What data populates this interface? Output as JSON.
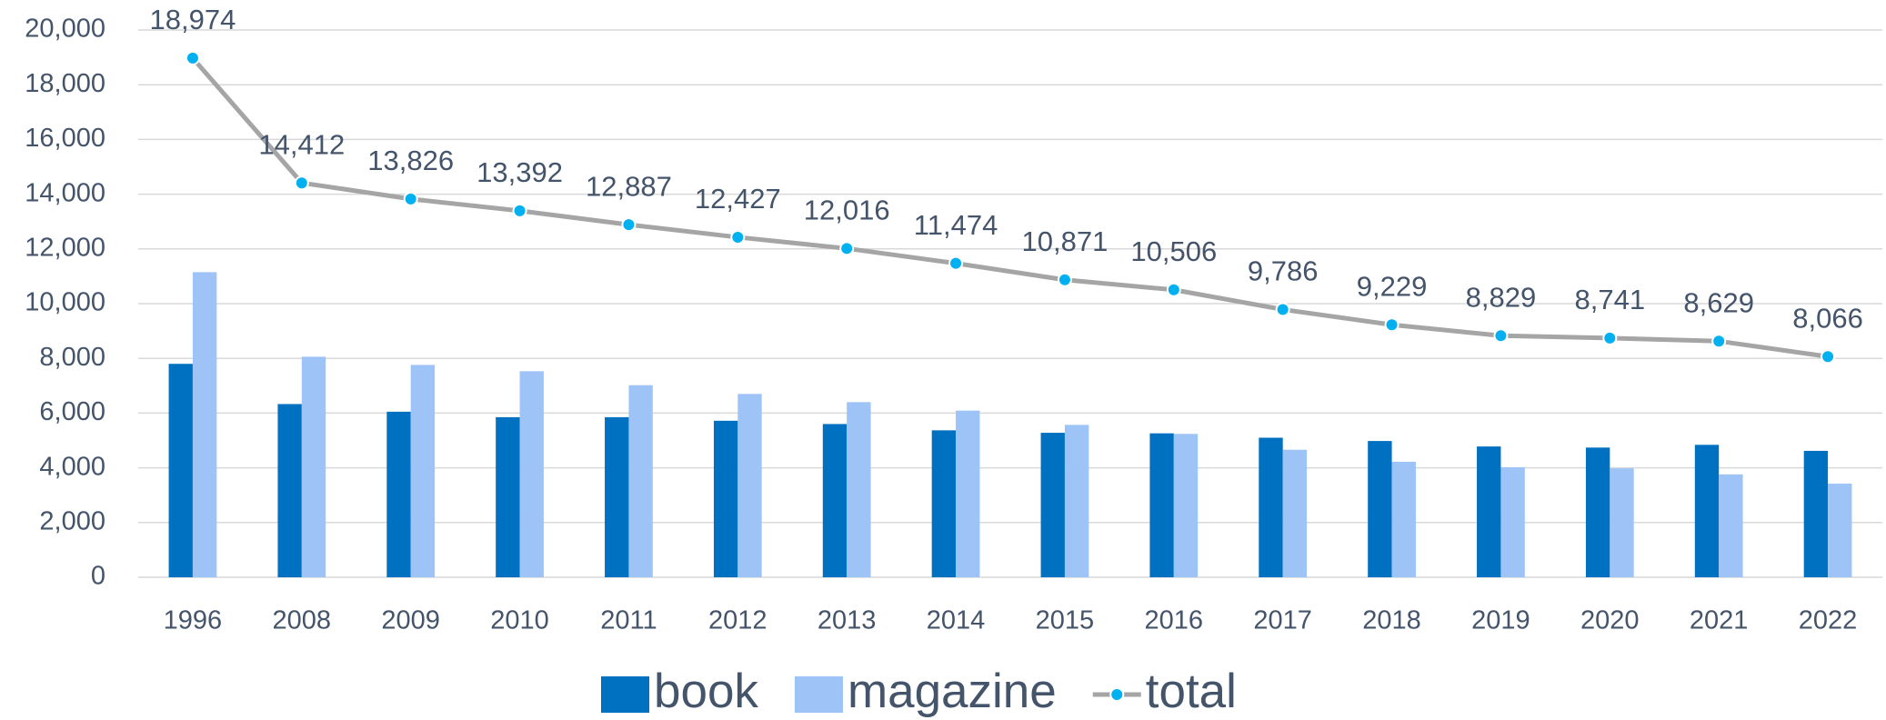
{
  "chart_data": {
    "type": "bar-line",
    "categories": [
      "1996",
      "2008",
      "2009",
      "2010",
      "2011",
      "2012",
      "2013",
      "2014",
      "2015",
      "2016",
      "2017",
      "2018",
      "2019",
      "2020",
      "2021",
      "2022"
    ],
    "series": [
      {
        "name": "book",
        "type": "bar",
        "color": "#0070c0",
        "values": [
          7800,
          6330,
          6050,
          5850,
          5850,
          5720,
          5600,
          5370,
          5280,
          5260,
          5100,
          4980,
          4780,
          4740,
          4840,
          4620
        ]
      },
      {
        "name": "magazine",
        "type": "bar",
        "color": "#9dc3f7",
        "values": [
          11150,
          8060,
          7760,
          7530,
          7020,
          6700,
          6400,
          6090,
          5570,
          5240,
          4660,
          4220,
          4020,
          3980,
          3760,
          3420
        ]
      },
      {
        "name": "total",
        "type": "line",
        "color": "#a5a5a5",
        "marker_color": "#00b0f0",
        "values": [
          18974,
          14412,
          13826,
          13392,
          12887,
          12427,
          12016,
          11474,
          10871,
          10506,
          9786,
          9229,
          8829,
          8741,
          8629,
          8066
        ],
        "value_labels": [
          "18,974",
          "14,412",
          "13,826",
          "13,392",
          "12,887",
          "12,427",
          "12,016",
          "11,474",
          "10,871",
          "10,506",
          "9,786",
          "9,229",
          "8,829",
          "8,741",
          "8,629",
          "8,066"
        ]
      }
    ],
    "ylim": [
      0,
      20000
    ],
    "yticks": [
      0,
      {
        "value": 2000,
        "label": "2,000"
      },
      {
        "value": 4000,
        "label": "4,000"
      },
      {
        "value": 6000,
        "label": "6,000"
      },
      {
        "value": 8000,
        "label": "8,000"
      },
      {
        "value": 10000,
        "label": "10,000"
      },
      {
        "value": 12000,
        "label": "12,000"
      },
      {
        "value": 14000,
        "label": "14,000"
      },
      {
        "value": 16000,
        "label": "16,000"
      },
      {
        "value": 18000,
        "label": "18,000"
      },
      {
        "value": 20000,
        "label": "20,000"
      }
    ],
    "grid": true,
    "legend": "bottom"
  }
}
